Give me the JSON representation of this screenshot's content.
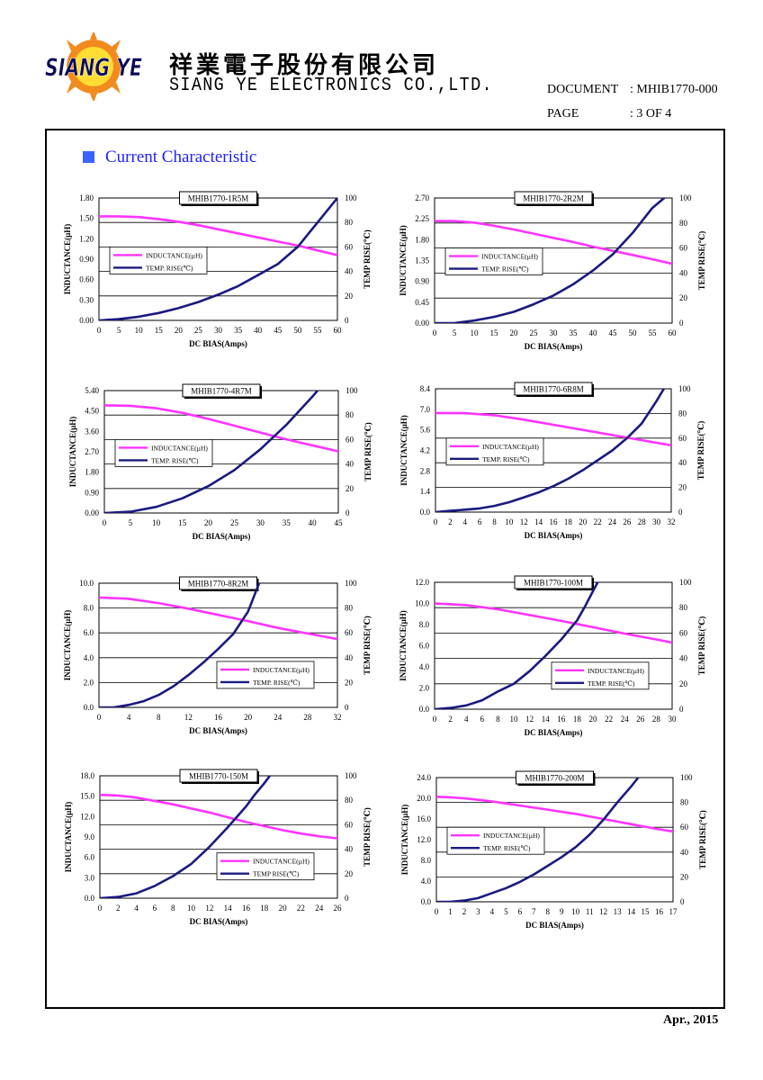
{
  "header": {
    "company_cn": "祥業電子股份有限公司",
    "company_en": "SIANG YE ELECTRONICS CO.,LTD.",
    "logo_text": "SIANG YE",
    "document_label": "DOCUMENT",
    "document_value": ": MHIB1770-000",
    "page_label": "PAGE",
    "page_value": ": 3 OF 4"
  },
  "section_title": "Current Characteristic",
  "footer_date": "Apr., 2015",
  "colors": {
    "inductance": "#ff33ff",
    "temp": "#1a1a80",
    "section": "#2020ff"
  },
  "chart_data": [
    {
      "type": "line",
      "title": "MHIB1770-1R5M",
      "xlabel": "DC BIAS(Amps)",
      "ylabel": "INDUCTANCE(µH)",
      "y2label": "TEMP RISE(℃)",
      "xlim": [
        0,
        60
      ],
      "xticks": [
        0,
        5,
        10,
        15,
        20,
        25,
        30,
        35,
        40,
        45,
        50,
        55,
        60
      ],
      "ylim": [
        0,
        1.8
      ],
      "yticks": [
        "0.00",
        "0.30",
        "0.60",
        "0.90",
        "1.20",
        "1.50",
        "1.80"
      ],
      "y2lim": [
        0,
        100
      ],
      "y2ticks": [
        0,
        20,
        40,
        60,
        80,
        100
      ],
      "legend": [
        "INDUCTANCE(µH)",
        "TEMP. RISE(℃)"
      ],
      "legend_position": "left",
      "series": [
        {
          "name": "INDUCTANCE(µH)",
          "axis": "left",
          "x": [
            0,
            5,
            10,
            15,
            20,
            25,
            30,
            35,
            40,
            45,
            50,
            55,
            60
          ],
          "y": [
            1.53,
            1.53,
            1.52,
            1.49,
            1.45,
            1.4,
            1.34,
            1.28,
            1.22,
            1.16,
            1.1,
            1.03,
            0.96
          ]
        },
        {
          "name": "TEMP. RISE(℃)",
          "axis": "right",
          "x": [
            0,
            5,
            10,
            15,
            20,
            25,
            30,
            35,
            40,
            45,
            50,
            55,
            60
          ],
          "y": [
            0,
            1,
            3,
            6,
            10,
            15,
            21,
            28,
            37,
            46,
            60,
            80,
            100
          ]
        }
      ]
    },
    {
      "type": "line",
      "title": "MHIB1770-2R2M",
      "xlabel": "DC BIAS(Amps)",
      "ylabel": "INDUCTANCE(µH)",
      "y2label": "TEMP RISE(℃)",
      "xlim": [
        0,
        60
      ],
      "xticks": [
        0,
        5,
        10,
        15,
        20,
        25,
        30,
        35,
        40,
        45,
        50,
        55,
        60
      ],
      "ylim": [
        0,
        2.7
      ],
      "yticks": [
        "0.00",
        "0.45",
        "0.90",
        "1.35",
        "1.80",
        "2.25",
        "2.70"
      ],
      "y2lim": [
        0,
        100
      ],
      "y2ticks": [
        0,
        20,
        40,
        60,
        80,
        100
      ],
      "legend": [
        "INDUCTANCE(µH)",
        "TEMP. RISE(℃)"
      ],
      "legend_position": "left",
      "series": [
        {
          "name": "INDUCTANCE(µH)",
          "axis": "left",
          "x": [
            0,
            5,
            10,
            15,
            20,
            25,
            30,
            35,
            40,
            45,
            50,
            55,
            60
          ],
          "y": [
            2.2,
            2.2,
            2.17,
            2.1,
            2.02,
            1.93,
            1.84,
            1.75,
            1.65,
            1.56,
            1.47,
            1.38,
            1.28
          ]
        },
        {
          "name": "TEMP. RISE(℃)",
          "axis": "right",
          "x": [
            0,
            5,
            10,
            15,
            20,
            25,
            30,
            35,
            40,
            45,
            50,
            55,
            58
          ],
          "y": [
            0,
            0,
            2,
            5,
            9,
            15,
            22,
            31,
            42,
            55,
            72,
            92,
            100
          ]
        }
      ]
    },
    {
      "type": "line",
      "title": "MHIB1770-4R7M",
      "xlabel": "DC BIAS(Amps)",
      "ylabel": "INDUCTANCE(µH)",
      "y2label": "TEMP RISE(℃)",
      "xlim": [
        0,
        45
      ],
      "xticks": [
        0,
        5,
        10,
        15,
        20,
        25,
        30,
        35,
        40,
        45
      ],
      "ylim": [
        0,
        5.4
      ],
      "yticks": [
        "0.00",
        "0.90",
        "1.80",
        "2.70",
        "3.60",
        "4.50",
        "5.40"
      ],
      "y2lim": [
        0,
        100
      ],
      "y2ticks": [
        0,
        20,
        40,
        60,
        80,
        100
      ],
      "legend": [
        "INDUCTANCE(µH)",
        "TEMP. RISE(℃)"
      ],
      "legend_position": "left",
      "series": [
        {
          "name": "INDUCTANCE(µH)",
          "axis": "left",
          "x": [
            0,
            5,
            10,
            15,
            20,
            25,
            30,
            35,
            40,
            45
          ],
          "y": [
            4.75,
            4.73,
            4.62,
            4.42,
            4.15,
            3.85,
            3.55,
            3.25,
            2.98,
            2.72
          ]
        },
        {
          "name": "TEMP. RISE(℃)",
          "axis": "right",
          "x": [
            0,
            5,
            10,
            15,
            20,
            25,
            30,
            35,
            40,
            41
          ],
          "y": [
            0,
            1,
            5,
            12,
            22,
            35,
            52,
            72,
            95,
            100
          ]
        }
      ]
    },
    {
      "type": "line",
      "title": "MHIB1770-6R8M",
      "xlabel": "DC BIAS(Amps)",
      "ylabel": "INDUCTANCE(µH)",
      "y2label": "TEMP RISE(℃)",
      "xlim": [
        0,
        32
      ],
      "xticks": [
        0,
        2,
        4,
        6,
        8,
        10,
        12,
        14,
        16,
        18,
        20,
        22,
        24,
        26,
        28,
        30,
        32
      ],
      "ylim": [
        0,
        8.4
      ],
      "yticks": [
        "0.0",
        "1.4",
        "2.8",
        "4.2",
        "5.6",
        "7.0",
        "8.4"
      ],
      "y2lim": [
        0,
        100
      ],
      "y2ticks": [
        0,
        20,
        40,
        60,
        80,
        100
      ],
      "legend": [
        "INDUCTANCE(µH)",
        "TEMP. RISE(℃)"
      ],
      "legend_position": "left",
      "series": [
        {
          "name": "INDUCTANCE(µH)",
          "axis": "left",
          "x": [
            0,
            4,
            8,
            12,
            16,
            20,
            24,
            28,
            32
          ],
          "y": [
            6.75,
            6.74,
            6.6,
            6.3,
            5.95,
            5.6,
            5.25,
            4.9,
            4.55
          ]
        },
        {
          "name": "TEMP. RISE(℃)",
          "axis": "right",
          "x": [
            0,
            2,
            4,
            6,
            8,
            10,
            12,
            14,
            16,
            18,
            20,
            22,
            24,
            26,
            28,
            30,
            31
          ],
          "y": [
            0,
            1,
            2,
            3,
            5,
            8,
            12,
            16,
            21,
            27,
            34,
            42,
            50,
            60,
            72,
            90,
            100
          ]
        }
      ]
    },
    {
      "type": "line",
      "title": "MHIB1770-8R2M",
      "xlabel": "DC BIAS(Amps)",
      "ylabel": "INDUCTANCE(µH)",
      "y2label": "TEMP RISE(℃)",
      "xlim": [
        0,
        32
      ],
      "xticks": [
        0,
        4,
        8,
        12,
        16,
        20,
        24,
        28,
        32
      ],
      "ylim": [
        0,
        10
      ],
      "yticks": [
        "0.0",
        "2.0",
        "4.0",
        "6.0",
        "8.0",
        "10.0"
      ],
      "y2lim": [
        0,
        100
      ],
      "y2ticks": [
        0,
        20,
        40,
        60,
        80,
        100
      ],
      "legend": [
        "INDUCTANCE(µH)",
        "TEMP. RISE(℃)"
      ],
      "legend_position": "right",
      "series": [
        {
          "name": "INDUCTANCE(µH)",
          "axis": "left",
          "x": [
            0,
            4,
            8,
            12,
            16,
            20,
            24,
            28,
            32
          ],
          "y": [
            8.85,
            8.75,
            8.4,
            7.95,
            7.45,
            6.95,
            6.4,
            5.95,
            5.5
          ]
        },
        {
          "name": "TEMP. RISE(℃)",
          "axis": "right",
          "x": [
            0,
            2,
            4,
            6,
            8,
            10,
            12,
            14,
            16,
            18,
            20,
            21.5
          ],
          "y": [
            0,
            0,
            2,
            5,
            10,
            17,
            26,
            36,
            47,
            59,
            77,
            100
          ]
        }
      ]
    },
    {
      "type": "line",
      "title": "MHIB1770-100M",
      "xlabel": "DC BIAS(Amps)",
      "ylabel": "INDUCTANCE(µH)",
      "y2label": "TEMP RISE(℃)",
      "xlim": [
        0,
        30
      ],
      "xticks": [
        0,
        2,
        4,
        6,
        8,
        10,
        12,
        14,
        16,
        18,
        20,
        22,
        24,
        26,
        28,
        30
      ],
      "ylim": [
        0,
        12
      ],
      "yticks": [
        "0.0",
        "2.0",
        "4.0",
        "6.0",
        "8.0",
        "10.0",
        "12.0"
      ],
      "y2lim": [
        0,
        100
      ],
      "y2ticks": [
        0,
        20,
        40,
        60,
        80,
        100
      ],
      "legend": [
        "INDUCTANCE(µH)",
        "TEMP. RISE(℃)"
      ],
      "legend_position": "right",
      "series": [
        {
          "name": "INDUCTANCE(µH)",
          "axis": "left",
          "x": [
            0,
            4,
            8,
            12,
            16,
            20,
            24,
            28,
            30
          ],
          "y": [
            10.0,
            9.85,
            9.45,
            8.9,
            8.35,
            7.75,
            7.15,
            6.6,
            6.3
          ]
        },
        {
          "name": "TEMP. RISE(℃)",
          "axis": "right",
          "x": [
            0,
            2,
            4,
            6,
            8,
            10,
            12,
            14,
            16,
            18,
            19,
            20,
            20.6
          ],
          "y": [
            0,
            1,
            3,
            7,
            14,
            20,
            30,
            42,
            55,
            70,
            81,
            93,
            100
          ]
        }
      ]
    },
    {
      "type": "line",
      "title": "MHIB1770-150M",
      "xlabel": "DC BIAS(Amps)",
      "ylabel": "INDUCTANCE(µH)",
      "y2label": "TEMP RISE(℃)",
      "xlim": [
        0,
        26
      ],
      "xticks": [
        0,
        2,
        4,
        6,
        8,
        10,
        12,
        14,
        16,
        18,
        20,
        22,
        24,
        26
      ],
      "ylim": [
        0,
        18
      ],
      "yticks": [
        "0.0",
        "3.0",
        "6.0",
        "9.0",
        "12.0",
        "15.0",
        "18.0"
      ],
      "y2lim": [
        0,
        100
      ],
      "y2ticks": [
        0,
        20,
        40,
        60,
        80,
        100
      ],
      "legend": [
        "INDUCTANCE(µH)",
        "TEMP RISE(℃)"
      ],
      "legend_position": "right",
      "series": [
        {
          "name": "INDUCTANCE(µH)",
          "axis": "left",
          "x": [
            0,
            2,
            4,
            6,
            8,
            10,
            12,
            14,
            16,
            18,
            20,
            22,
            24,
            26
          ],
          "y": [
            15.2,
            15.1,
            14.8,
            14.3,
            13.8,
            13.2,
            12.6,
            11.9,
            11.2,
            10.6,
            10.0,
            9.5,
            9.1,
            8.8
          ]
        },
        {
          "name": "TEMP RISE(℃)",
          "axis": "right",
          "x": [
            0,
            2,
            4,
            6,
            8,
            10,
            12,
            14,
            16,
            17,
            18,
            18.6
          ],
          "y": [
            0,
            1,
            4,
            10,
            18,
            28,
            42,
            58,
            75,
            85,
            94,
            100
          ]
        }
      ]
    },
    {
      "type": "line",
      "title": "MHIB1770-200M",
      "xlabel": "DC BIAS(Amps)",
      "ylabel": "INDUCTANCE(µH)",
      "y2label": "TEMP RISE(℃)",
      "xlim": [
        0,
        17
      ],
      "xticks": [
        0,
        1,
        2,
        3,
        4,
        5,
        6,
        7,
        8,
        9,
        10,
        11,
        12,
        13,
        14,
        15,
        16,
        17
      ],
      "ylim": [
        0,
        24
      ],
      "yticks": [
        "0.0",
        "4.0",
        "8.0",
        "12.0",
        "16.0",
        "20.0",
        "24.0"
      ],
      "y2lim": [
        0,
        100
      ],
      "y2ticks": [
        0,
        20,
        40,
        60,
        80,
        100
      ],
      "legend": [
        "INDUCTANCE(µH)",
        "TEMP. RISE(℃)"
      ],
      "legend_position": "left",
      "series": [
        {
          "name": "INDUCTANCE(µH)",
          "axis": "left",
          "x": [
            0,
            1,
            2,
            3,
            4,
            5,
            6,
            7,
            8,
            9,
            10,
            11,
            12,
            13,
            14,
            15,
            16,
            17
          ],
          "y": [
            20.3,
            20.2,
            20.0,
            19.7,
            19.4,
            19.0,
            18.6,
            18.2,
            17.8,
            17.4,
            17.0,
            16.5,
            16.0,
            15.5,
            15.0,
            14.5,
            14.0,
            13.6
          ]
        },
        {
          "name": "TEMP. RISE(℃)",
          "axis": "right",
          "x": [
            0,
            1,
            2,
            3,
            4,
            5,
            6,
            7,
            8,
            9,
            10,
            11,
            12,
            13,
            14,
            14.5
          ],
          "y": [
            0,
            0,
            1,
            3,
            7,
            11,
            16,
            22,
            29,
            36,
            44,
            54,
            66,
            80,
            93,
            100
          ]
        }
      ]
    }
  ]
}
